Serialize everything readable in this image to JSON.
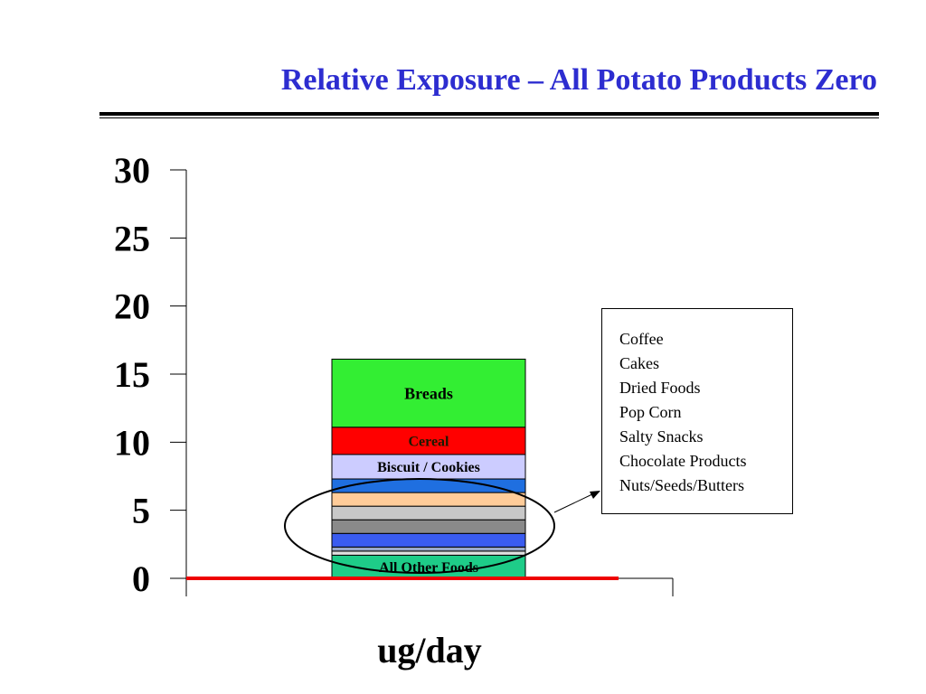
{
  "slide": {
    "title": "Relative Exposure – All Potato Products Zero"
  },
  "chart_data": {
    "type": "bar",
    "stacked": true,
    "categories": [
      "ug/day"
    ],
    "xlabel": "ug/day",
    "ylabel": "",
    "ylim": [
      0,
      30
    ],
    "yticks": [
      0,
      5,
      10,
      15,
      20,
      25,
      30
    ],
    "grid": false,
    "series": [
      {
        "name": "All Other Foods",
        "values": [
          1.7
        ],
        "color": "#1ecc88",
        "label_color": "#000000"
      },
      {
        "values": [
          0.3
        ],
        "color": "#e0e0e0"
      },
      {
        "values": [
          0.3
        ],
        "color": "#9aa8c8"
      },
      {
        "values": [
          1.0
        ],
        "color": "#3a5cf0"
      },
      {
        "values": [
          1.0
        ],
        "color": "#8a8a8a"
      },
      {
        "values": [
          1.0
        ],
        "color": "#c8c8c8"
      },
      {
        "values": [
          1.0
        ],
        "color": "#ffcc99"
      },
      {
        "values": [
          1.0
        ],
        "color": "#1f6fe0"
      },
      {
        "name": "Biscuit / Cookies",
        "values": [
          1.8
        ],
        "color": "#ccccff",
        "label_color": "#000000"
      },
      {
        "name": "Cereal",
        "values": [
          2.0
        ],
        "color": "#ff0000",
        "label_color": "#1a1a00"
      },
      {
        "name": "Breads",
        "values": [
          5.0
        ],
        "color": "#33ee33",
        "label_color": "#000000"
      }
    ],
    "reference_line": {
      "value": 0,
      "color": "#ee0000"
    },
    "annotation": {
      "shape": "ellipse",
      "items": [
        "Coffee",
        "Cakes",
        "Dried Foods",
        "Pop Corn",
        "Salty Snacks",
        "Chocolate Products",
        "Nuts/Seeds/Butters"
      ]
    }
  }
}
